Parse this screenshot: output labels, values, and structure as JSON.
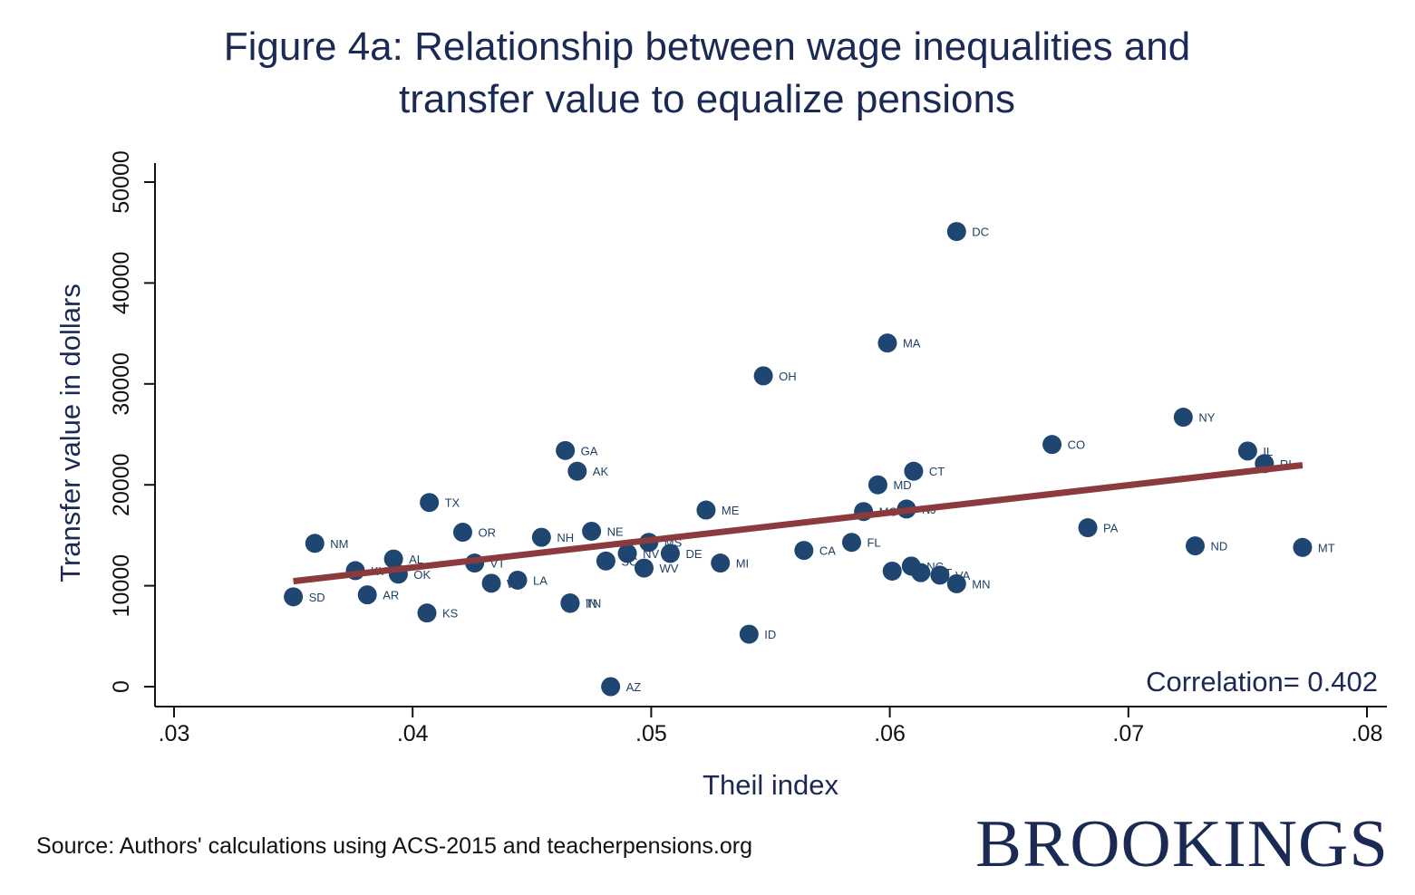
{
  "figure": {
    "title_line1": "Figure 4a: Relationship between wage inequalities and",
    "title_line2": "transfer value to equalize pensions",
    "source": "Source: Authors' calculations using ACS-2015 and teacherpensions.org",
    "brand": "BROOKINGS",
    "correlation_text": "Correlation= 0.402"
  },
  "colors": {
    "point": "#1f4670",
    "fit_line": "#8b3a3e",
    "text": "#1b2a55",
    "axis": "#111111"
  },
  "chart_data": {
    "type": "scatter",
    "title": "Figure 4a: Relationship between wage inequalities and transfer value to equalize pensions",
    "xlabel": "Theil index",
    "ylabel": "Transfer value in dollars",
    "xlim": [
      0.03,
      0.08
    ],
    "ylim": [
      0,
      50000
    ],
    "x_ticks": [
      0.03,
      0.04,
      0.05,
      0.06,
      0.07,
      0.08
    ],
    "x_tick_labels": [
      ".03",
      ".04",
      ".05",
      ".06",
      ".07",
      ".08"
    ],
    "y_ticks": [
      0,
      10000,
      20000,
      30000,
      40000,
      50000
    ],
    "y_tick_labels": [
      "0",
      "10000",
      "20000",
      "30000",
      "40000",
      "50000"
    ],
    "grid": false,
    "correlation": 0.402,
    "fit_line": {
      "x": [
        0.035,
        0.0773
      ],
      "y": [
        10450,
        21950
      ]
    },
    "points": [
      {
        "label": "DC",
        "x": 0.0628,
        "y": 45100
      },
      {
        "label": "MA",
        "x": 0.0599,
        "y": 34050
      },
      {
        "label": "OH",
        "x": 0.0547,
        "y": 30800
      },
      {
        "label": "NY",
        "x": 0.0723,
        "y": 26700
      },
      {
        "label": "CO",
        "x": 0.0668,
        "y": 24000
      },
      {
        "label": "IL",
        "x": 0.075,
        "y": 23350
      },
      {
        "label": "RI",
        "x": 0.0757,
        "y": 22100
      },
      {
        "label": "GA",
        "x": 0.0464,
        "y": 23400
      },
      {
        "label": "AK",
        "x": 0.0469,
        "y": 21350
      },
      {
        "label": "CT",
        "x": 0.061,
        "y": 21350
      },
      {
        "label": "MD",
        "x": 0.0595,
        "y": 20000
      },
      {
        "label": "TX",
        "x": 0.0407,
        "y": 18250
      },
      {
        "label": "ME",
        "x": 0.0523,
        "y": 17500
      },
      {
        "label": "MO",
        "x": 0.0589,
        "y": 17350
      },
      {
        "label": "NJ",
        "x": 0.0607,
        "y": 17600
      },
      {
        "label": "PA",
        "x": 0.0683,
        "y": 15750
      },
      {
        "label": "OR",
        "x": 0.0421,
        "y": 15300
      },
      {
        "label": "NE",
        "x": 0.0475,
        "y": 15400
      },
      {
        "label": "NH",
        "x": 0.0454,
        "y": 14800
      },
      {
        "label": "NM",
        "x": 0.0359,
        "y": 14200
      },
      {
        "label": "MS",
        "x": 0.0499,
        "y": 14300
      },
      {
        "label": "FL",
        "x": 0.0584,
        "y": 14300
      },
      {
        "label": "ND",
        "x": 0.0728,
        "y": 13950
      },
      {
        "label": "MT",
        "x": 0.0773,
        "y": 13800
      },
      {
        "label": "CA",
        "x": 0.0564,
        "y": 13500
      },
      {
        "label": "NV",
        "x": 0.049,
        "y": 13200
      },
      {
        "label": "DE",
        "x": 0.0508,
        "y": 13200
      },
      {
        "label": "AL",
        "x": 0.0392,
        "y": 12650
      },
      {
        "label": "SC",
        "x": 0.0481,
        "y": 12450
      },
      {
        "label": "VT",
        "x": 0.0426,
        "y": 12250
      },
      {
        "label": "MI",
        "x": 0.0529,
        "y": 12250
      },
      {
        "label": "NC",
        "x": 0.0609,
        "y": 11950
      },
      {
        "label": "WV",
        "x": 0.0497,
        "y": 11750
      },
      {
        "label": "KY",
        "x": 0.0376,
        "y": 11500
      },
      {
        "label": "WI",
        "x": 0.0601,
        "y": 11450
      },
      {
        "label": "UT",
        "x": 0.0613,
        "y": 11300
      },
      {
        "label": "OK",
        "x": 0.0394,
        "y": 11150
      },
      {
        "label": "VA",
        "x": 0.0621,
        "y": 11050
      },
      {
        "label": "LA",
        "x": 0.0444,
        "y": 10550
      },
      {
        "label": "WY",
        "x": 0.0433,
        "y": 10250
      },
      {
        "label": "MN",
        "x": 0.0628,
        "y": 10200
      },
      {
        "label": "AR",
        "x": 0.0381,
        "y": 9100
      },
      {
        "label": "SD",
        "x": 0.035,
        "y": 8900
      },
      {
        "label": "TN",
        "x": 0.0466,
        "y": 8300
      },
      {
        "label": "IN",
        "x": 0.0466,
        "y": 8250
      },
      {
        "label": "KS",
        "x": 0.0406,
        "y": 7300
      },
      {
        "label": "ID",
        "x": 0.0541,
        "y": 5200
      },
      {
        "label": "AZ",
        "x": 0.0483,
        "y": 0
      }
    ]
  }
}
